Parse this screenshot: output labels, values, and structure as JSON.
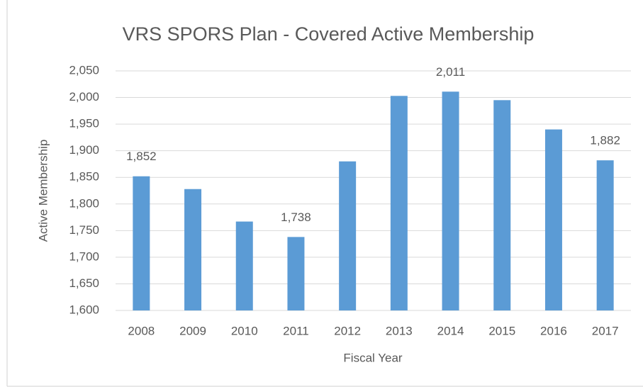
{
  "chart_data": {
    "type": "bar",
    "title": "VRS SPORS Plan - Covered  Active Membership",
    "x_label": "Fiscal Year",
    "y_label": "Active Membership",
    "categories": [
      "2008",
      "2009",
      "2010",
      "2011",
      "2012",
      "2013",
      "2014",
      "2015",
      "2016",
      "2017"
    ],
    "values": [
      1852,
      1828,
      1767,
      1738,
      1880,
      2003,
      2011,
      1995,
      1940,
      1882
    ],
    "value_labels": [
      "1,852",
      null,
      null,
      "1,738",
      null,
      null,
      "2,011",
      null,
      null,
      "1,882"
    ],
    "color": "#5b9bd5",
    "ylim": [
      1600,
      2050
    ],
    "yticks": [
      {
        "value": 1600,
        "label": "1,600"
      },
      {
        "value": 1650,
        "label": "1,650"
      },
      {
        "value": 1700,
        "label": "1,700"
      },
      {
        "value": 1750,
        "label": "1,750"
      },
      {
        "value": 1800,
        "label": "1,800"
      },
      {
        "value": 1850,
        "label": "1,850"
      },
      {
        "value": 1900,
        "label": "1,900"
      },
      {
        "value": 1950,
        "label": "1,950"
      },
      {
        "value": 2000,
        "label": "2,000"
      },
      {
        "value": 2050,
        "label": "2,050"
      }
    ],
    "grid": true
  }
}
